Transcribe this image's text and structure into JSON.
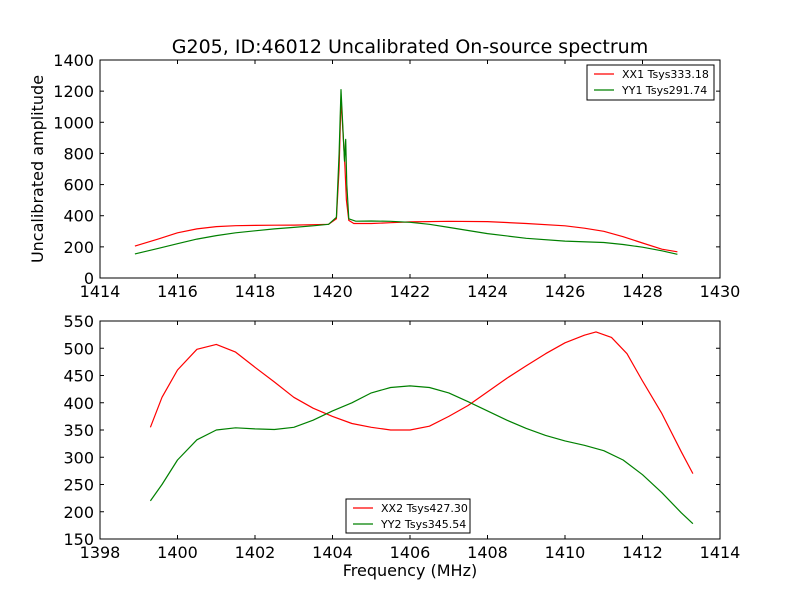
{
  "colors": {
    "red": "#ff0000",
    "green": "#008000",
    "axis": "#000000",
    "background": "#ffffff"
  },
  "chart_data": [
    {
      "type": "line",
      "title": "G205, ID:46012 Uncalibrated On-source spectrum",
      "xlabel": "",
      "ylabel": "Uncalibrated amplitude",
      "xlim": [
        1414,
        1430
      ],
      "ylim": [
        0,
        1400
      ],
      "xticks": [
        1414,
        1416,
        1418,
        1420,
        1422,
        1424,
        1426,
        1428,
        1430
      ],
      "yticks": [
        0,
        200,
        400,
        600,
        800,
        1000,
        1200,
        1400
      ],
      "grid": false,
      "legend_position": "top-right",
      "series": [
        {
          "name": "XX1 Tsys333.18",
          "color": "#ff0000",
          "x": [
            1414.9,
            1415.5,
            1416.0,
            1416.5,
            1417.0,
            1417.5,
            1418.0,
            1418.5,
            1419.0,
            1419.5,
            1419.9,
            1420.1,
            1420.17,
            1420.22,
            1420.28,
            1420.32,
            1420.36,
            1420.42,
            1420.55,
            1421.0,
            1421.5,
            1422.0,
            1423.0,
            1424.0,
            1425.0,
            1426.0,
            1426.5,
            1427.0,
            1427.5,
            1428.0,
            1428.5,
            1428.9
          ],
          "y": [
            205,
            250,
            290,
            315,
            330,
            336,
            338,
            339,
            340,
            342,
            345,
            380,
            700,
            1150,
            900,
            720,
            500,
            370,
            350,
            350,
            355,
            360,
            364,
            362,
            350,
            335,
            320,
            300,
            265,
            225,
            185,
            168
          ]
        },
        {
          "name": "YY1 Tsys291.74",
          "color": "#008000",
          "x": [
            1414.9,
            1415.5,
            1416.0,
            1416.5,
            1417.0,
            1417.5,
            1418.0,
            1418.5,
            1419.0,
            1419.5,
            1419.9,
            1420.1,
            1420.17,
            1420.22,
            1420.27,
            1420.31,
            1420.34,
            1420.37,
            1420.42,
            1420.6,
            1421.0,
            1421.5,
            1422.0,
            1422.5,
            1423.0,
            1423.5,
            1424.0,
            1425.0,
            1426.0,
            1427.0,
            1427.5,
            1428.0,
            1428.5,
            1428.9
          ],
          "y": [
            155,
            190,
            220,
            250,
            272,
            290,
            303,
            315,
            325,
            335,
            345,
            390,
            800,
            1210,
            950,
            750,
            890,
            600,
            380,
            365,
            366,
            364,
            358,
            345,
            325,
            305,
            285,
            255,
            237,
            228,
            215,
            198,
            175,
            152
          ]
        }
      ]
    },
    {
      "type": "line",
      "title": "",
      "xlabel": "Frequency (MHz)",
      "ylabel": "",
      "xlim": [
        1398,
        1414
      ],
      "ylim": [
        150,
        550
      ],
      "xticks": [
        1398,
        1400,
        1402,
        1404,
        1406,
        1408,
        1410,
        1412,
        1414
      ],
      "yticks": [
        150,
        200,
        250,
        300,
        350,
        400,
        450,
        500,
        550
      ],
      "grid": false,
      "legend_position": "bottom-center",
      "series": [
        {
          "name": "XX2 Tsys427.30",
          "color": "#ff0000",
          "x": [
            1399.3,
            1399.6,
            1400.0,
            1400.5,
            1401.0,
            1401.5,
            1402.0,
            1402.5,
            1403.0,
            1403.5,
            1404.0,
            1404.5,
            1405.0,
            1405.5,
            1406.0,
            1406.5,
            1407.0,
            1407.5,
            1408.0,
            1408.5,
            1409.0,
            1409.5,
            1410.0,
            1410.5,
            1410.8,
            1411.2,
            1411.6,
            1412.0,
            1412.5,
            1413.0,
            1413.3
          ],
          "y": [
            355,
            410,
            460,
            498,
            507,
            493,
            465,
            438,
            410,
            390,
            375,
            362,
            355,
            350,
            350,
            357,
            375,
            395,
            420,
            445,
            468,
            490,
            510,
            524,
            530,
            520,
            490,
            440,
            380,
            310,
            270
          ]
        },
        {
          "name": "YY2 Tsys345.54",
          "color": "#008000",
          "x": [
            1399.3,
            1399.6,
            1400.0,
            1400.5,
            1401.0,
            1401.5,
            1402.0,
            1402.5,
            1403.0,
            1403.5,
            1404.0,
            1404.5,
            1405.0,
            1405.5,
            1406.0,
            1406.5,
            1407.0,
            1407.5,
            1408.0,
            1408.5,
            1409.0,
            1409.5,
            1410.0,
            1410.5,
            1411.0,
            1411.5,
            1412.0,
            1412.5,
            1413.0,
            1413.3
          ],
          "y": [
            220,
            250,
            295,
            332,
            350,
            354,
            352,
            351,
            355,
            368,
            385,
            400,
            418,
            428,
            431,
            428,
            418,
            402,
            385,
            368,
            353,
            340,
            330,
            322,
            312,
            295,
            268,
            235,
            198,
            178
          ]
        }
      ]
    }
  ]
}
